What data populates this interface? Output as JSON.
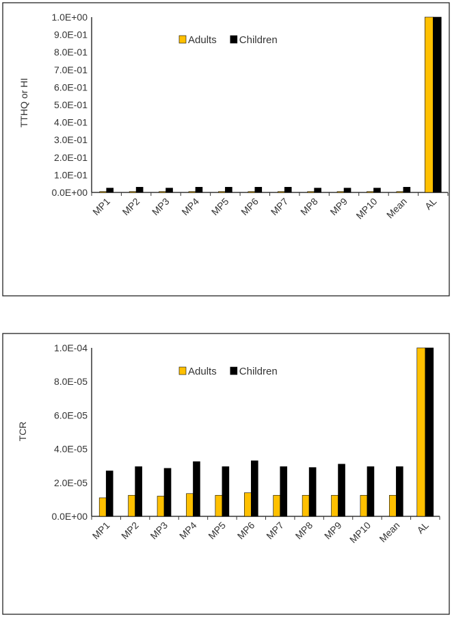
{
  "chart_data": [
    {
      "type": "bar",
      "title": "",
      "xlabel": "",
      "ylabel": "TTHQ or HI",
      "ylim": [
        0,
        1.0
      ],
      "yticks": [
        "0.0E+00",
        "1.0E-01",
        "2.0E-01",
        "3.0E-01",
        "4.0E-01",
        "5.0E-01",
        "6.0E-01",
        "7.0E-01",
        "8.0E-01",
        "9.0E-01",
        "1.0E+00"
      ],
      "legend_position": "top-center",
      "categories": [
        "MP1",
        "MP2",
        "MP3",
        "MP4",
        "MP5",
        "MP6",
        "MP7",
        "MP8",
        "MP9",
        "MP10",
        "Mean",
        "AL"
      ],
      "series": [
        {
          "name": "Adults",
          "color": "#FFC000",
          "values": [
            0.005,
            0.005,
            0.005,
            0.005,
            0.005,
            0.005,
            0.005,
            0.005,
            0.005,
            0.005,
            0.005,
            1.0
          ]
        },
        {
          "name": "Children",
          "color": "#000000",
          "values": [
            0.025,
            0.03,
            0.025,
            0.03,
            0.03,
            0.03,
            0.03,
            0.025,
            0.025,
            0.025,
            0.03,
            1.0
          ]
        }
      ]
    },
    {
      "type": "bar",
      "title": "",
      "xlabel": "",
      "ylabel": "TCR",
      "ylim": [
        0,
        0.0001
      ],
      "yticks": [
        "0.0E+00",
        "2.0E-05",
        "4.0E-05",
        "6.0E-05",
        "8.0E-05",
        "1.0E-04"
      ],
      "legend_position": "top-center",
      "categories": [
        "MP1",
        "MP2",
        "MP3",
        "MP4",
        "MP5",
        "MP6",
        "MP7",
        "MP8",
        "MP9",
        "MP10",
        "Mean",
        "AL"
      ],
      "series": [
        {
          "name": "Adults",
          "color": "#FFC000",
          "values": [
            1.1e-05,
            1.25e-05,
            1.2e-05,
            1.35e-05,
            1.25e-05,
            1.4e-05,
            1.25e-05,
            1.25e-05,
            1.25e-05,
            1.25e-05,
            1.25e-05,
            0.0001
          ]
        },
        {
          "name": "Children",
          "color": "#000000",
          "values": [
            2.7e-05,
            2.95e-05,
            2.85e-05,
            3.25e-05,
            2.95e-05,
            3.3e-05,
            2.95e-05,
            2.9e-05,
            3.1e-05,
            2.95e-05,
            2.95e-05,
            0.0001
          ]
        }
      ]
    }
  ]
}
